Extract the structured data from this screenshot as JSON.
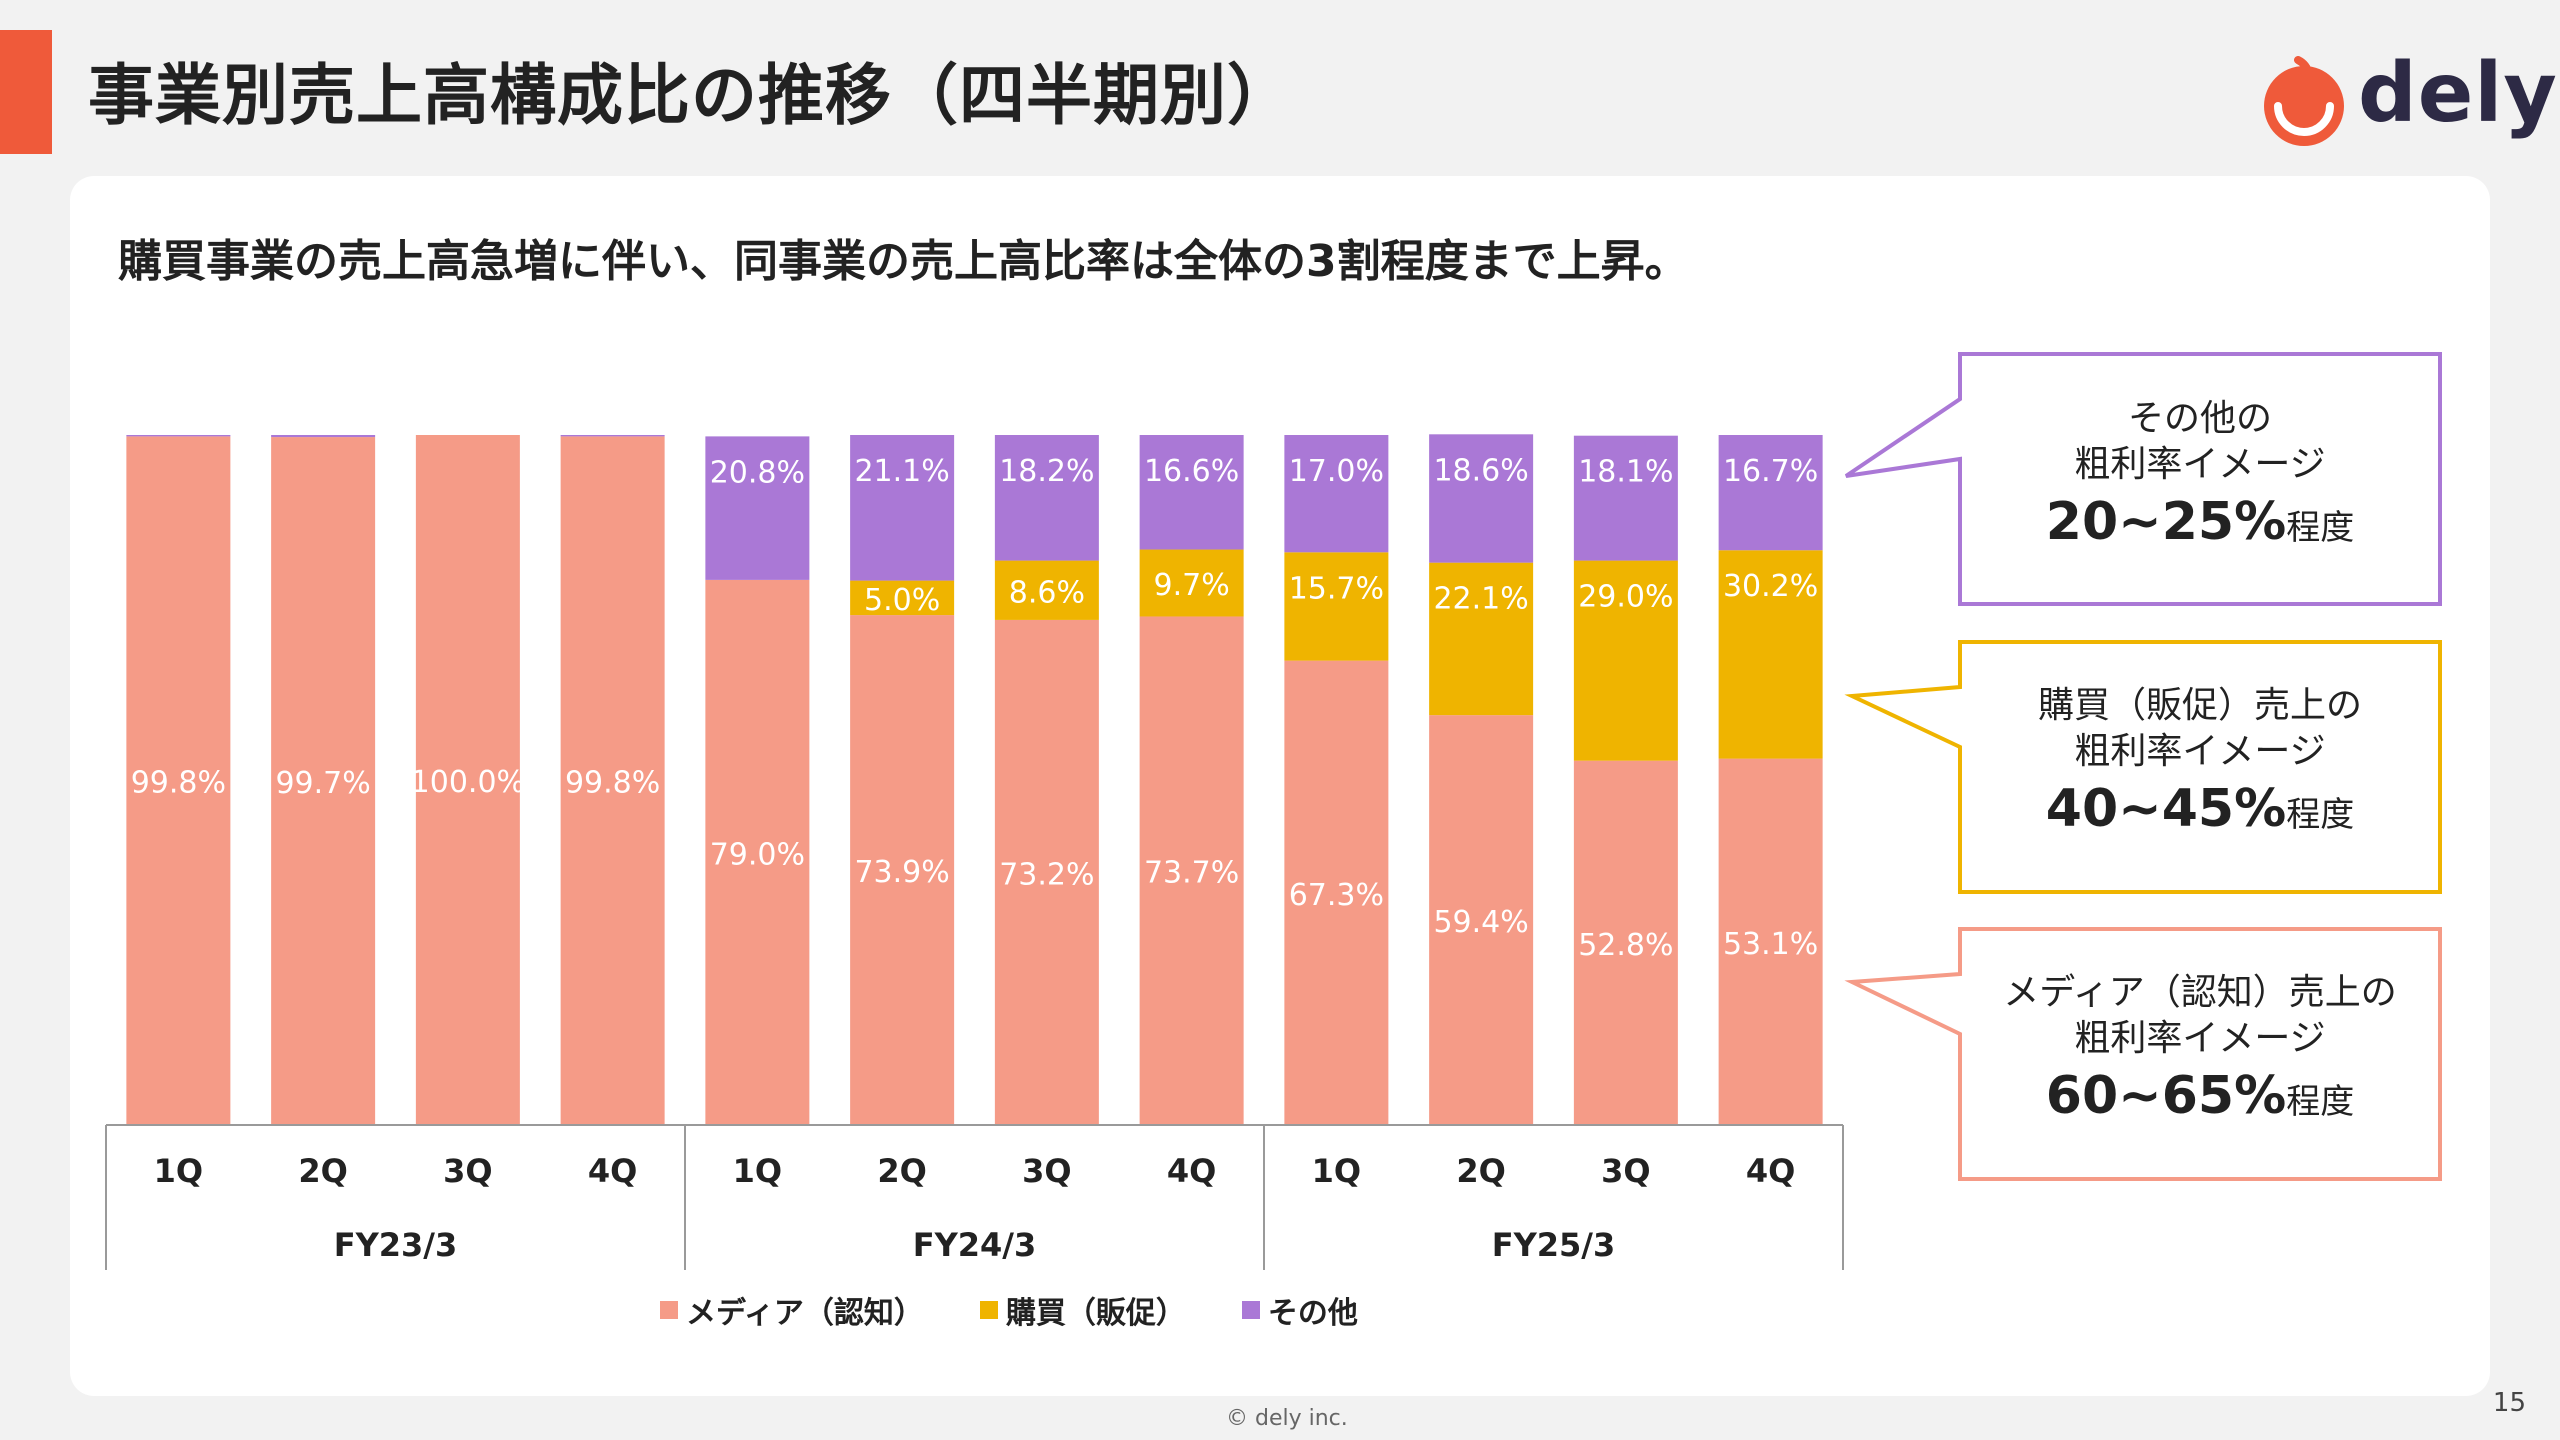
{
  "page": {
    "title": "事業別売上高構成比の推移（四半期別）",
    "subtitle": "購買事業の売上高急増に伴い、同事業の売上高比率は全体の3割程度まで上昇。",
    "logo_text": "dely",
    "footer": "© dely inc.",
    "page_number": "15"
  },
  "colors": {
    "accent": "#ef5a3a",
    "media": "#f59b87",
    "purchase": "#efb400",
    "other": "#aa78d6"
  },
  "chart_data": {
    "type": "bar",
    "stacked": true,
    "ylim": [
      0,
      100
    ],
    "grid": false,
    "legend": "bottom",
    "categories": [
      "1Q",
      "2Q",
      "3Q",
      "4Q",
      "1Q",
      "2Q",
      "3Q",
      "4Q",
      "1Q",
      "2Q",
      "3Q",
      "4Q"
    ],
    "groups": [
      {
        "label": "FY23/3",
        "count": 4
      },
      {
        "label": "FY24/3",
        "count": 4
      },
      {
        "label": "FY25/3",
        "count": 4
      }
    ],
    "series": [
      {
        "name": "メディア（認知）",
        "color": "#f59b87",
        "values": [
          99.8,
          99.7,
          100.0,
          99.8,
          79.0,
          73.9,
          73.2,
          73.7,
          67.3,
          59.4,
          52.8,
          53.1
        ],
        "labels": [
          "99.8%",
          "99.7%",
          "100.0%",
          "99.8%",
          "79.0%",
          "73.9%",
          "73.2%",
          "73.7%",
          "67.3%",
          "59.4%",
          "52.8%",
          "53.1%"
        ]
      },
      {
        "name": "購買（販促）",
        "color": "#efb400",
        "values": [
          0,
          0,
          0,
          0,
          0,
          5.0,
          8.6,
          9.7,
          15.7,
          22.1,
          29.0,
          30.2
        ],
        "labels": [
          "",
          "",
          "",
          "",
          "",
          "5.0%",
          "8.6%",
          "9.7%",
          "15.7%",
          "22.1%",
          "29.0%",
          "30.2%"
        ]
      },
      {
        "name": "その他",
        "color": "#aa78d6",
        "values": [
          0.2,
          0.3,
          0,
          0.2,
          20.8,
          21.1,
          18.2,
          16.6,
          17.0,
          18.6,
          18.1,
          16.7
        ],
        "labels": [
          "",
          "",
          "",
          "",
          "20.8%",
          "21.1%",
          "18.2%",
          "16.6%",
          "17.0%",
          "18.6%",
          "18.1%",
          "16.7%"
        ]
      }
    ]
  },
  "callouts": [
    {
      "line1": "その他の",
      "line2": "粗利率イメージ",
      "value": "20~25%",
      "suffix": "程度",
      "color": "#aa78d6"
    },
    {
      "line1": "購買（販促）売上の",
      "line2": "粗利率イメージ",
      "value": "40~45%",
      "suffix": "程度",
      "color": "#efb400"
    },
    {
      "line1": "メディア（認知）売上の",
      "line2": "粗利率イメージ",
      "value": "60~65%",
      "suffix": "程度",
      "color": "#f59b87"
    }
  ]
}
